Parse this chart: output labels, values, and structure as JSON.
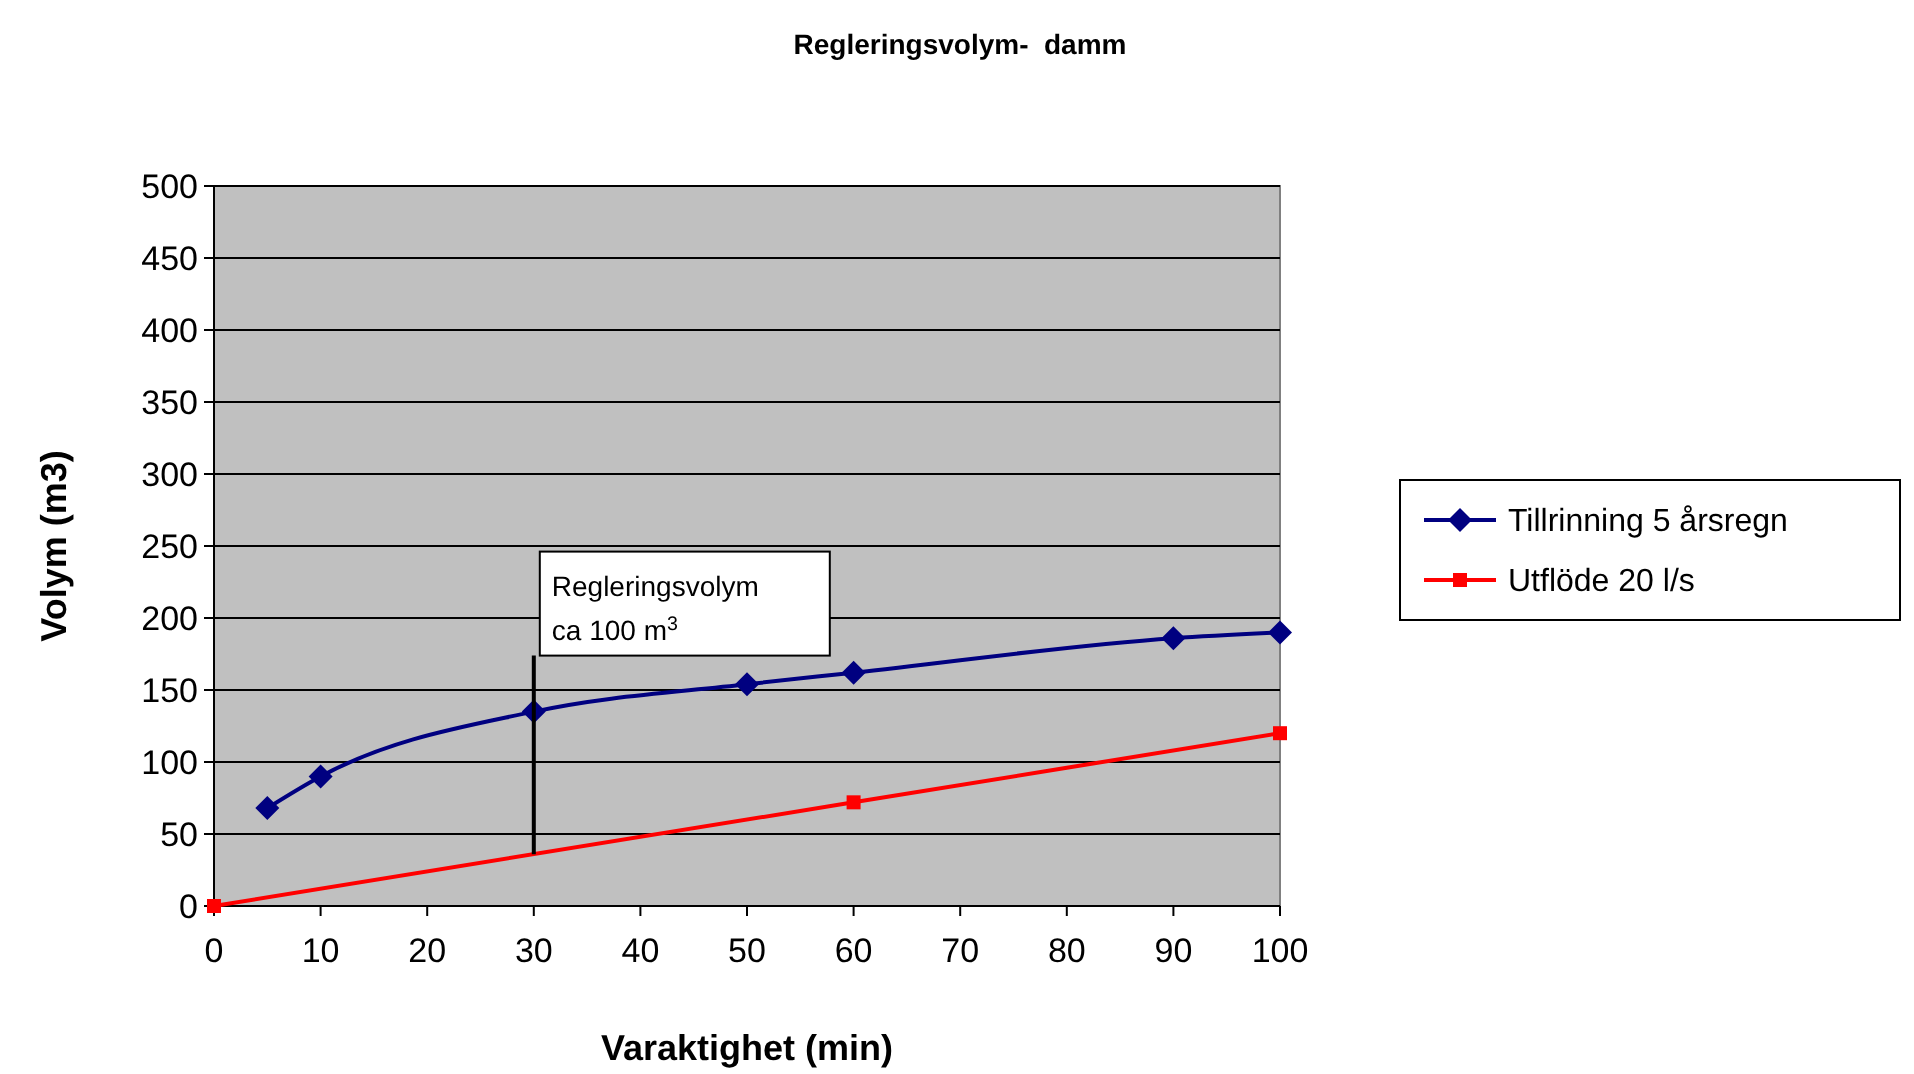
{
  "chart_data": {
    "type": "line",
    "title": "Regleringsvolym-  damm",
    "xlabel": "Varaktighet (min)",
    "ylabel": "Volym (m3)",
    "xlim": [
      0,
      100
    ],
    "xticks": [
      0,
      10,
      20,
      30,
      40,
      50,
      60,
      70,
      80,
      90,
      100
    ],
    "ylim": [
      0,
      500
    ],
    "yticks": [
      0,
      50,
      100,
      150,
      200,
      250,
      300,
      350,
      400,
      450,
      500
    ],
    "grid": "y",
    "legend": "right",
    "series": [
      {
        "name": "Tillrinning 5 årsregn",
        "color": "#000080",
        "marker": "diamond",
        "x": [
          5,
          10,
          30,
          50,
          60,
          90,
          100
        ],
        "values": [
          68,
          90,
          135,
          154,
          162,
          186,
          190
        ]
      },
      {
        "name": "Utflöde 20 l/s",
        "color": "#ff0000",
        "marker": "square",
        "x": [
          0,
          60,
          100
        ],
        "values": [
          0,
          72,
          120
        ]
      }
    ],
    "annotations": [
      {
        "text": "Regleringsvolym\nca 100 m$^{3}$",
        "x": 30,
        "y": 135
      }
    ]
  }
}
